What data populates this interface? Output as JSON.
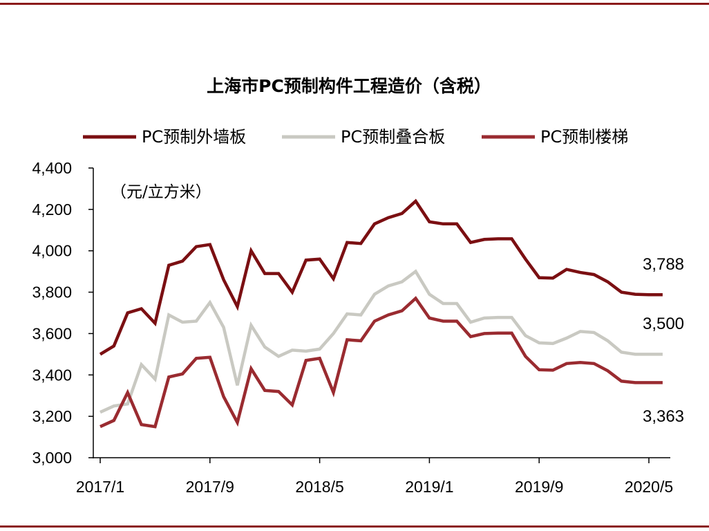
{
  "chart_data": {
    "type": "line",
    "title": "上海市PC预制构件工程造价（含税）",
    "unit_label": "（元/立方米）",
    "ylim": [
      3000,
      4400
    ],
    "yticks": [
      3000,
      3200,
      3400,
      3600,
      3800,
      4000,
      4200,
      4400
    ],
    "ytick_labels": [
      "3,000",
      "3,200",
      "3,400",
      "3,600",
      "3,800",
      "4,000",
      "4,200",
      "4,400"
    ],
    "x": [
      "2017/1",
      "2017/2",
      "2017/3",
      "2017/4",
      "2017/5",
      "2017/6",
      "2017/7",
      "2017/8",
      "2017/9",
      "2017/10",
      "2017/11",
      "2017/12",
      "2018/1",
      "2018/2",
      "2018/3",
      "2018/4",
      "2018/5",
      "2018/6",
      "2018/7",
      "2018/8",
      "2018/9",
      "2018/10",
      "2018/11",
      "2018/12",
      "2019/1",
      "2019/2",
      "2019/3",
      "2019/4",
      "2019/5",
      "2019/6",
      "2019/7",
      "2019/8",
      "2019/9",
      "2019/10",
      "2019/11",
      "2019/12",
      "2020/1",
      "2020/2",
      "2020/3",
      "2020/4",
      "2020/5",
      "2020/6"
    ],
    "xtick_labels": [
      "2017/1",
      "2017/9",
      "2018/5",
      "2019/1",
      "2019/9",
      "2020/5"
    ],
    "xtick_indices": [
      0,
      8,
      16,
      24,
      32,
      40
    ],
    "series": [
      {
        "name": "PC预制外墙板",
        "color": "#7b0f12",
        "values": [
          3500,
          3540,
          3700,
          3720,
          3650,
          3930,
          3950,
          4020,
          4030,
          3860,
          3730,
          4000,
          3890,
          3890,
          3800,
          3955,
          3960,
          3865,
          4040,
          4035,
          4130,
          4160,
          4180,
          4240,
          4140,
          4130,
          4130,
          4040,
          4055,
          4058,
          4058,
          3960,
          3870,
          3868,
          3910,
          3895,
          3885,
          3850,
          3800,
          3790,
          3788,
          3788
        ]
      },
      {
        "name": "PC预制叠合板",
        "color": "#c9c9c2",
        "values": [
          3220,
          3250,
          3260,
          3450,
          3380,
          3690,
          3655,
          3660,
          3750,
          3630,
          3350,
          3640,
          3535,
          3490,
          3520,
          3515,
          3525,
          3600,
          3695,
          3690,
          3790,
          3830,
          3850,
          3900,
          3790,
          3745,
          3745,
          3655,
          3675,
          3678,
          3678,
          3590,
          3555,
          3552,
          3578,
          3610,
          3605,
          3565,
          3510,
          3500,
          3500,
          3500
        ]
      },
      {
        "name": "PC预制楼梯",
        "color": "#9a2b30",
        "values": [
          3150,
          3180,
          3315,
          3160,
          3150,
          3390,
          3405,
          3480,
          3485,
          3295,
          3170,
          3430,
          3325,
          3320,
          3255,
          3470,
          3480,
          3315,
          3570,
          3565,
          3660,
          3690,
          3710,
          3770,
          3675,
          3660,
          3660,
          3585,
          3600,
          3602,
          3602,
          3490,
          3425,
          3423,
          3455,
          3460,
          3455,
          3420,
          3370,
          3363,
          3363,
          3363
        ]
      }
    ],
    "end_labels": [
      "3,788",
      "3,500",
      "3,363"
    ],
    "legend_position": "top",
    "grid": false
  }
}
